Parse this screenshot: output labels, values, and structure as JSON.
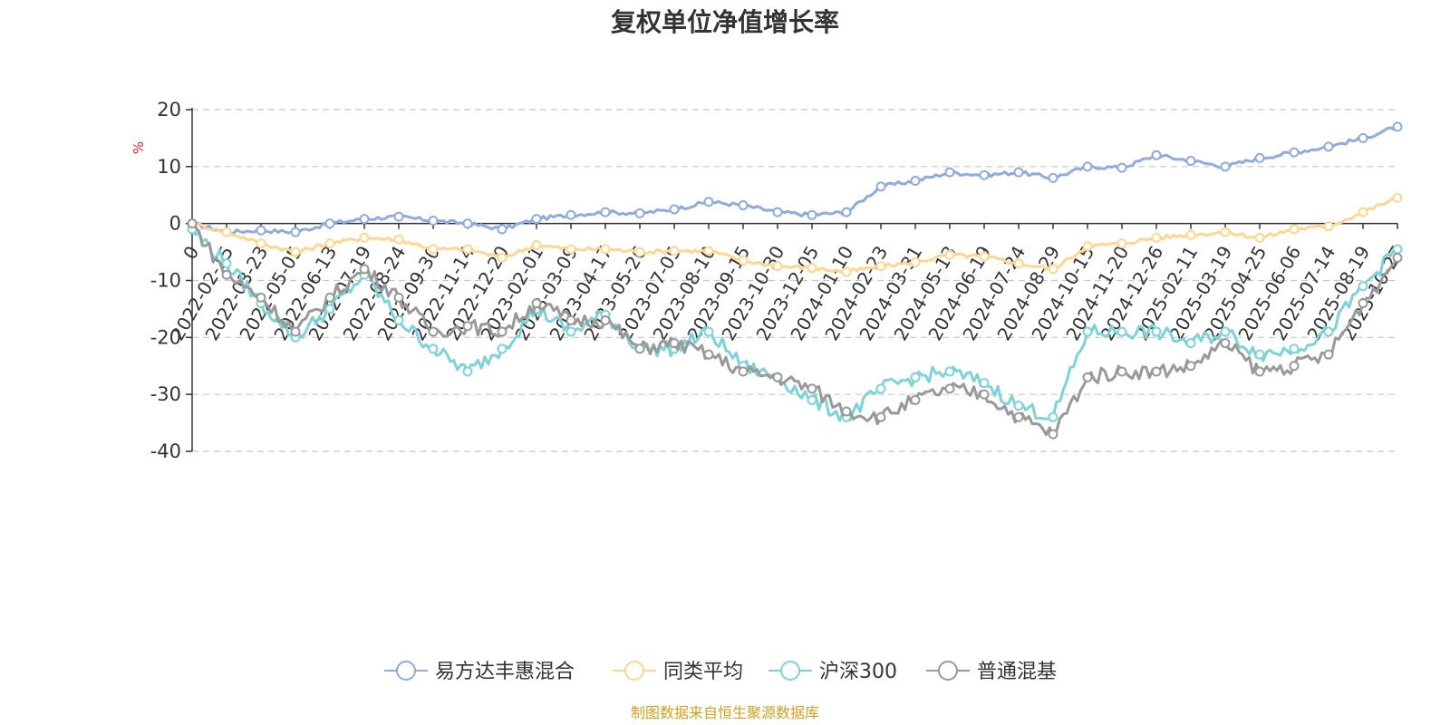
{
  "chart_data": {
    "type": "line",
    "title": "复权单位净值增长率",
    "ylabel": "%",
    "ylim": [
      -40,
      20
    ],
    "yticks": [
      20,
      10,
      0,
      -10,
      -20,
      -30,
      -40
    ],
    "x_tick_labels": [
      "0",
      "2022-02-15",
      "2022-03-23",
      "2022-05-05",
      "2022-06-13",
      "2022-07-19",
      "2022-08-24",
      "2022-09-30",
      "2022-11-14",
      "2022-12-20",
      "2023-02-01",
      "2023-03-09",
      "2023-04-17",
      "2023-05-26",
      "2023-07-05",
      "2023-08-10",
      "2023-09-15",
      "2023-10-30",
      "2023-12-05",
      "2024-01-10",
      "2024-02-23",
      "2024-03-31",
      "2024-05-13",
      "2024-06-19",
      "2024-07-24",
      "2024-08-29",
      "2024-10-15",
      "2024-11-20",
      "2024-12-26",
      "2025-02-11",
      "2025-03-19",
      "2025-04-25",
      "2025-06-06",
      "2025-07-14",
      "2025-08-19",
      "2025-10-27"
    ],
    "series": [
      {
        "name": "易方达丰惠混合",
        "color": "#8faadc",
        "values": [
          0,
          -1.5,
          -1.2,
          -1.5,
          0,
          0.8,
          1.2,
          0.5,
          0,
          -1,
          0.8,
          1.5,
          2,
          1.8,
          2.5,
          3.8,
          3.2,
          2,
          1.5,
          2,
          6.5,
          7.5,
          9,
          8.5,
          9,
          8,
          10,
          9.8,
          12,
          11,
          10,
          11.5,
          12.5,
          13.5,
          15,
          17
        ]
      },
      {
        "name": "同类平均",
        "color": "#ffd68f",
        "values": [
          0,
          -1.5,
          -3.5,
          -5,
          -3.5,
          -2.5,
          -2.8,
          -4.5,
          -4.5,
          -6,
          -3.8,
          -4.5,
          -4.5,
          -5,
          -4.8,
          -4.8,
          -6.5,
          -7.5,
          -7.8,
          -8.5,
          -7.5,
          -6.8,
          -5.5,
          -5.8,
          -7,
          -8,
          -4,
          -3.5,
          -2.5,
          -2,
          -1.5,
          -2.5,
          -1,
          -0.5,
          2,
          4.5
        ]
      },
      {
        "name": "沪深300",
        "color": "#7dd3d8",
        "values": [
          -1,
          -7,
          -14,
          -20,
          -15,
          -9,
          -17,
          -22,
          -26,
          -22,
          -15,
          -19,
          -16,
          -22,
          -22,
          -19,
          -25,
          -27,
          -31,
          -34,
          -29,
          -27,
          -26,
          -28,
          -32,
          -34,
          -19,
          -19,
          -19,
          -21,
          -19,
          -23,
          -22,
          -19,
          -11,
          -4.5
        ]
      },
      {
        "name": "普通混基",
        "color": "#999999",
        "values": [
          0,
          -9,
          -13,
          -19,
          -13,
          -8,
          -13,
          -19,
          -18,
          -19,
          -14,
          -17,
          -17,
          -22,
          -21,
          -23,
          -26,
          -27,
          -29,
          -33,
          -34,
          -31,
          -29,
          -30,
          -34,
          -37,
          -27,
          -26,
          -26,
          -25,
          -21,
          -26,
          -25,
          -23,
          -14,
          -6
        ]
      }
    ]
  },
  "legend": [
    {
      "label": "易方达丰惠混合",
      "color": "#8faadc"
    },
    {
      "label": "同类平均",
      "color": "#ffd68f"
    },
    {
      "label": "沪深300",
      "color": "#7dd3d8"
    },
    {
      "label": "普通混基",
      "color": "#999999"
    }
  ],
  "source_text": "制图数据来自恒生聚源数据库"
}
